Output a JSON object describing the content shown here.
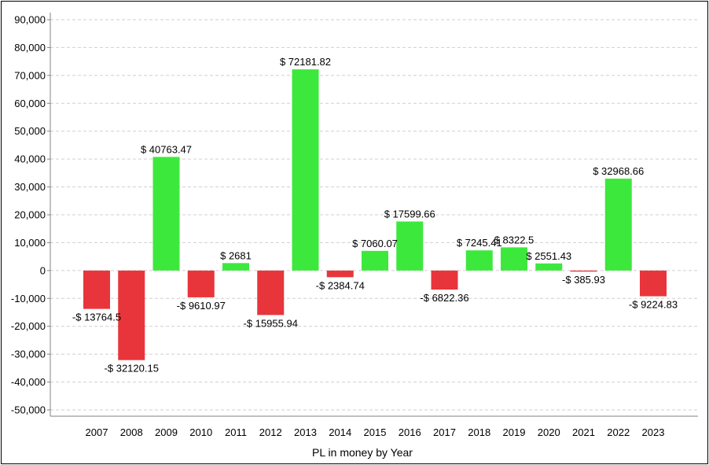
{
  "chart_data": {
    "type": "bar",
    "title": "",
    "xlabel": "PL in money by Year",
    "ylabel": "",
    "ylim": [
      -50000,
      90000
    ],
    "yticks": [
      90000,
      80000,
      70000,
      60000,
      50000,
      40000,
      30000,
      20000,
      10000,
      0,
      -10000,
      -20000,
      -30000,
      -40000,
      -50000
    ],
    "ytick_labels": [
      "90,000",
      "80,000",
      "70,000",
      "60,000",
      "50,000",
      "40,000",
      "30,000",
      "20,000",
      "10,000",
      "0",
      "-10,000",
      "-20,000",
      "-30,000",
      "-40,000",
      "-50,000"
    ],
    "grid": true,
    "legend": "none",
    "categories": [
      "2007",
      "2008",
      "2009",
      "2010",
      "2011",
      "2012",
      "2013",
      "2014",
      "2015",
      "2016",
      "2017",
      "2018",
      "2019",
      "2020",
      "2021",
      "2022",
      "2023"
    ],
    "values": [
      -13764.5,
      -32120.15,
      40763.47,
      -9610.97,
      2681,
      -15955.94,
      72181.82,
      -2384.74,
      7060.07,
      17599.66,
      -6822.36,
      7245.41,
      8322.5,
      2551.43,
      -385.93,
      32968.66,
      -9224.83
    ],
    "data_labels": [
      "-$ 13764.5",
      "-$ 32120.15",
      "$ 40763.47",
      "-$ 9610.97",
      "$ 2681",
      "-$ 15955.94",
      "$ 72181.82",
      "-$ 2384.74",
      "$ 7060.07",
      "$ 17599.66",
      "-$ 6822.36",
      "$ 7245.41",
      "$ 8322.5",
      "$ 2551.43",
      "-$ 385.93",
      "$ 32968.66",
      "-$ 9224.83"
    ],
    "colors": {
      "positive": "#3de83d",
      "negative": "#e8353b",
      "grid": "#cfcfcf",
      "axis": "#808080"
    }
  }
}
